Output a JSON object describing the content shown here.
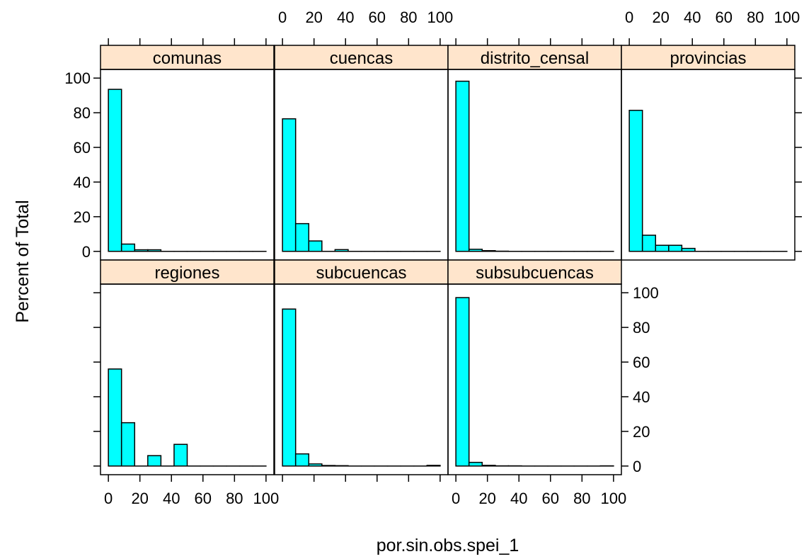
{
  "chart_data": {
    "type": "bar",
    "layout": "trellis-histogram",
    "xlabel": "por.sin.obs.spei_1",
    "ylabel": "Percent of Total",
    "xlim": [
      -5,
      105
    ],
    "ylim": [
      -5,
      105
    ],
    "x_ticks": [
      0,
      20,
      40,
      60,
      80,
      100
    ],
    "y_ticks": [
      0,
      20,
      40,
      60,
      80,
      100
    ],
    "bin_edges": [
      0,
      8.33,
      16.67,
      25,
      33.33,
      41.67,
      50,
      58.33,
      66.67,
      75,
      83.33,
      91.67,
      100
    ],
    "grid": false,
    "bar_color": "#00FFFF",
    "strip_color": "#FFE5CC",
    "panels": [
      {
        "name": "comunas",
        "values": [
          93.5,
          4.2,
          0.9,
          0.9,
          0,
          0,
          0,
          0,
          0,
          0,
          0,
          0
        ]
      },
      {
        "name": "cuencas",
        "values": [
          76.5,
          16.0,
          6.0,
          0,
          1.0,
          0,
          0,
          0,
          0,
          0,
          0,
          0
        ]
      },
      {
        "name": "distrito_censal",
        "values": [
          98.2,
          1.2,
          0.4,
          0.1,
          0,
          0,
          0,
          0,
          0,
          0,
          0,
          0
        ]
      },
      {
        "name": "provincias",
        "values": [
          81.4,
          9.3,
          3.5,
          3.5,
          1.7,
          0,
          0,
          0,
          0,
          0,
          0,
          0
        ]
      },
      {
        "name": "regiones",
        "values": [
          56.0,
          25.0,
          0,
          6.0,
          0,
          12.5,
          0,
          0,
          0,
          0,
          0,
          0
        ]
      },
      {
        "name": "subcuencas",
        "values": [
          90.6,
          7.0,
          1.2,
          0.3,
          0.2,
          0,
          0,
          0,
          0,
          0,
          0,
          0.4
        ]
      },
      {
        "name": "subsubcuencas",
        "values": [
          97.2,
          2.1,
          0.4,
          0.1,
          0.1,
          0,
          0,
          0,
          0,
          0,
          0,
          0.1
        ]
      }
    ]
  }
}
